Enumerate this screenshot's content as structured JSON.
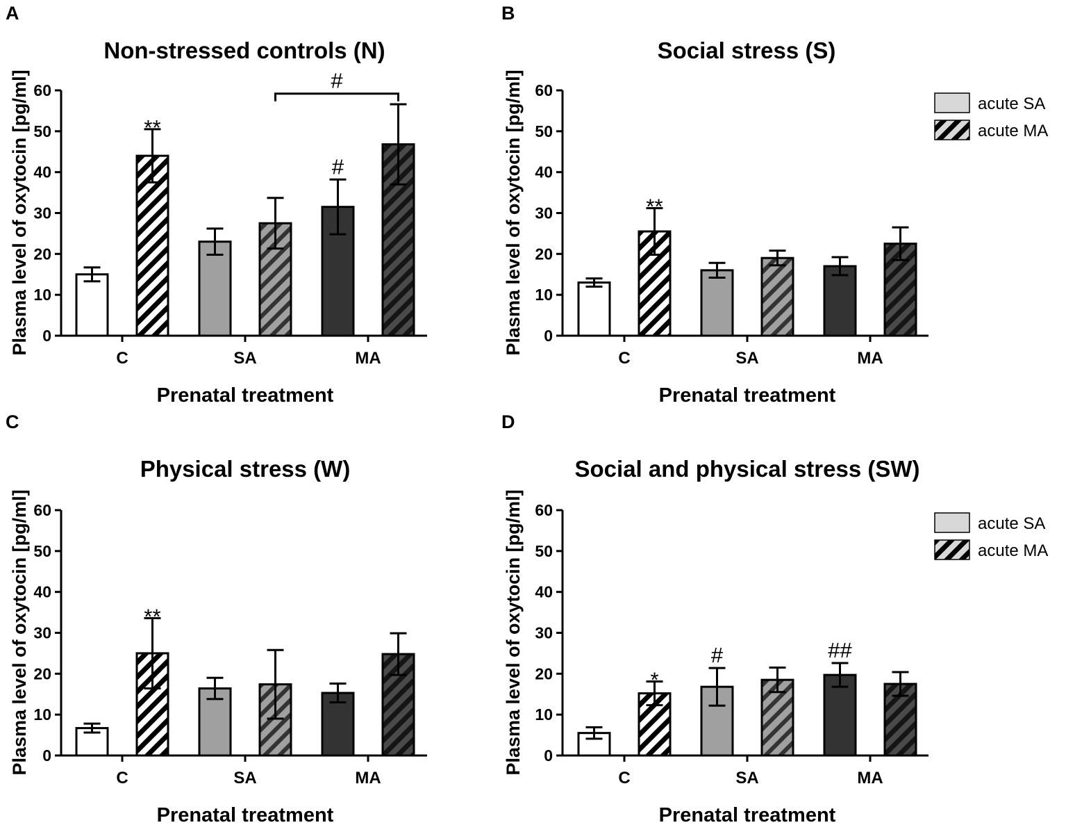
{
  "colors": {
    "white": "#ffffff",
    "gray": "#a0a0a0",
    "dark": "#333333",
    "legend_fill": "#d8d8d8",
    "hatch": "#000000"
  },
  "legend": [
    {
      "label": "acute SA",
      "pattern": "solid"
    },
    {
      "label": "acute MA",
      "pattern": "hatched"
    }
  ],
  "chart_data": [
    {
      "panel": "A",
      "type": "bar",
      "title": "Non-stressed controls (N)",
      "xlabel": "Prenatal treatment",
      "ylabel": "Plasma level of oxytocin [pg/ml]",
      "ylim": [
        0,
        60
      ],
      "yticks": [
        "0",
        "10",
        "20",
        "30",
        "40",
        "50",
        "60"
      ],
      "categories": [
        "C",
        "SA",
        "MA"
      ],
      "show_legend": false,
      "series": [
        {
          "name": "acute SA",
          "values": [
            15,
            23,
            31.5
          ],
          "errors": [
            1.7,
            3.2,
            6.7
          ],
          "annotations": [
            "",
            "",
            "#"
          ]
        },
        {
          "name": "acute MA",
          "values": [
            44,
            27.5,
            46.8
          ],
          "errors": [
            6.5,
            6.2,
            9.8
          ],
          "annotations": [
            "**",
            "",
            ""
          ]
        }
      ],
      "brackets": [
        {
          "from_category": "SA",
          "from_series": "acute MA",
          "to_category": "MA",
          "to_series": "acute MA",
          "level": 59.2,
          "label": "#"
        }
      ]
    },
    {
      "panel": "B",
      "type": "bar",
      "title": "Social stress (S)",
      "xlabel": "Prenatal treatment",
      "ylabel": "Plasma level of oxytocin [pg/ml]",
      "ylim": [
        0,
        60
      ],
      "yticks": [
        "0",
        "10",
        "20",
        "30",
        "40",
        "50",
        "60"
      ],
      "categories": [
        "C",
        "SA",
        "MA"
      ],
      "show_legend": true,
      "series": [
        {
          "name": "acute SA",
          "values": [
            13,
            16,
            17
          ],
          "errors": [
            1.0,
            1.8,
            2.2
          ],
          "annotations": [
            "",
            "",
            ""
          ]
        },
        {
          "name": "acute MA",
          "values": [
            25.5,
            19,
            22.5
          ],
          "errors": [
            5.7,
            1.8,
            4.0
          ],
          "annotations": [
            "**",
            "",
            ""
          ]
        }
      ],
      "brackets": []
    },
    {
      "panel": "C",
      "type": "bar",
      "title": "Physical stress  (W)",
      "xlabel": "Prenatal treatment",
      "ylabel": "Plasma level of oxytocin [pg/ml]",
      "ylim": [
        0,
        60
      ],
      "yticks": [
        "0",
        "10",
        "20",
        "30",
        "40",
        "50",
        "60"
      ],
      "categories": [
        "C",
        "SA",
        "MA"
      ],
      "show_legend": false,
      "series": [
        {
          "name": "acute SA",
          "values": [
            6.7,
            16.4,
            15.3
          ],
          "errors": [
            1.1,
            2.6,
            2.3
          ],
          "annotations": [
            "",
            "",
            ""
          ]
        },
        {
          "name": "acute MA",
          "values": [
            25,
            17.4,
            24.8
          ],
          "errors": [
            8.6,
            8.4,
            5.1
          ],
          "annotations": [
            "**",
            "",
            ""
          ]
        }
      ],
      "brackets": []
    },
    {
      "panel": "D",
      "type": "bar",
      "title": "Social and physical stress (SW)",
      "xlabel": "Prenatal treatment",
      "ylabel": "Plasma level of oxytocin [pg/ml]",
      "ylim": [
        0,
        60
      ],
      "yticks": [
        "0",
        "10",
        "20",
        "30",
        "40",
        "50",
        "60"
      ],
      "categories": [
        "C",
        "SA",
        "MA"
      ],
      "show_legend": true,
      "series": [
        {
          "name": "acute SA",
          "values": [
            5.5,
            16.8,
            19.7
          ],
          "errors": [
            1.4,
            4.6,
            2.9
          ],
          "annotations": [
            "",
            "#",
            "##"
          ]
        },
        {
          "name": "acute MA",
          "values": [
            15.2,
            18.5,
            17.5
          ],
          "errors": [
            2.9,
            3.0,
            2.9
          ],
          "annotations": [
            "*",
            "",
            ""
          ]
        }
      ],
      "brackets": []
    }
  ]
}
